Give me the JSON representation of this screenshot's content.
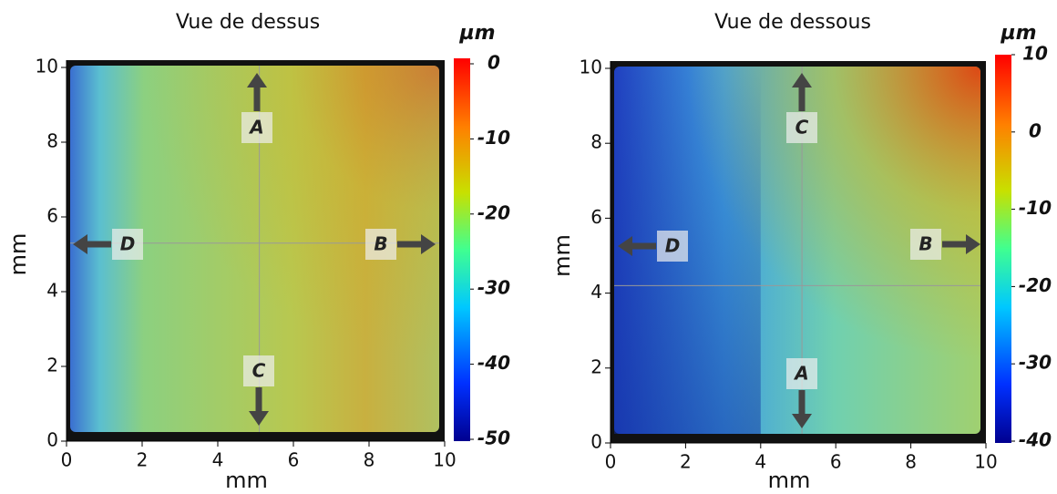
{
  "chart_data": [
    {
      "type": "heatmap",
      "title": "Vue de dessus",
      "xlabel": "mm",
      "ylabel": "mm",
      "xlim": [
        0,
        10
      ],
      "xticks": [
        0,
        2,
        4,
        6,
        8,
        10
      ],
      "ylim": [
        0,
        10
      ],
      "yticks": [
        0,
        2,
        4,
        6,
        8,
        10
      ],
      "colorbar_label": "µm",
      "clim": [
        -50,
        0
      ],
      "cticks": [
        0,
        -10,
        -20,
        -30,
        -40,
        -50
      ],
      "annotations": [
        "A",
        "B",
        "C",
        "D"
      ]
    },
    {
      "type": "heatmap",
      "title": "Vue de dessous",
      "xlabel": "mm",
      "ylabel": "mm",
      "xlim": [
        0,
        10
      ],
      "xticks": [
        0,
        2,
        4,
        6,
        8,
        10
      ],
      "ylim": [
        0,
        10
      ],
      "yticks": [
        0,
        2,
        4,
        6,
        8,
        10
      ],
      "colorbar_label": "µm",
      "clim": [
        -40,
        10
      ],
      "cticks": [
        10,
        0,
        -10,
        -20,
        -30,
        -40
      ],
      "annotations": [
        "A",
        "B",
        "C",
        "D"
      ]
    }
  ]
}
